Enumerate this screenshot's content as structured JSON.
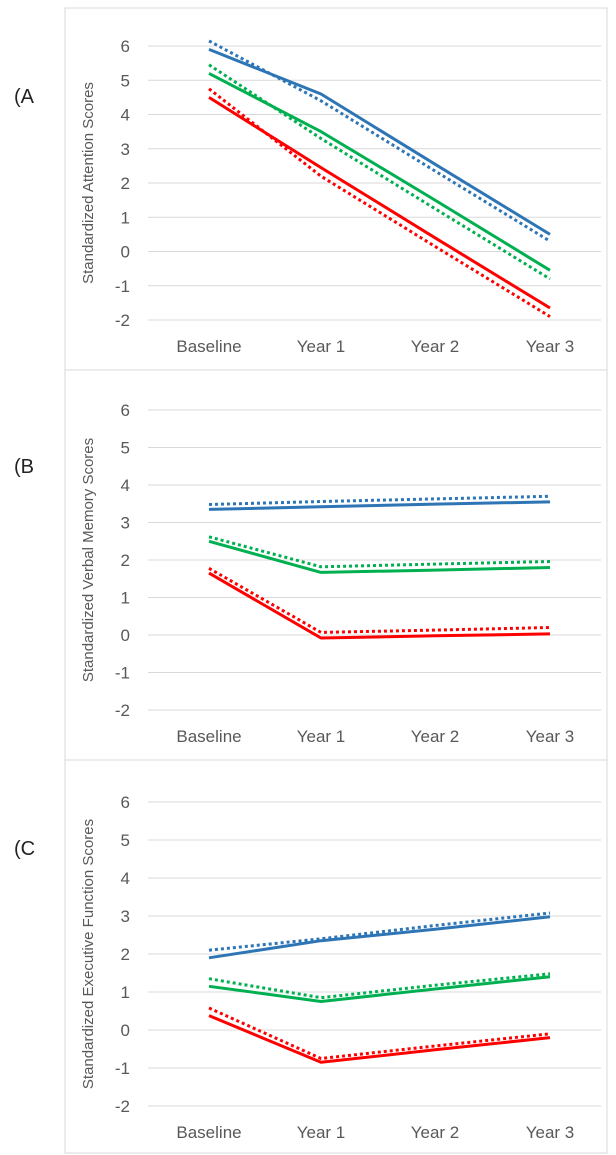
{
  "panels": [
    {
      "tag": "(A"
    },
    {
      "tag": "(B"
    },
    {
      "tag": "(C"
    }
  ],
  "colors": {
    "blue": "#2e75b6",
    "green": "#00b050",
    "red": "#ff0000",
    "grid": "#d9d9d9",
    "frame": "#d9d9d9",
    "text": "#595959"
  },
  "chart_data": [
    {
      "type": "line",
      "categories": [
        "Baseline",
        "Year 1",
        "Year 2",
        "Year 3"
      ],
      "ylabel": "Standardized Attention Scores",
      "ylim": [
        -2,
        6
      ],
      "yticks": [
        "6",
        "5",
        "4",
        "3",
        "2",
        "1",
        "0",
        "-1",
        "-2"
      ],
      "grid": true,
      "series": [
        {
          "color": "blue",
          "style": "solid",
          "values": [
            5.9,
            4.6,
            2.55,
            0.5
          ]
        },
        {
          "color": "blue",
          "style": "dotted",
          "values": [
            6.15,
            4.4,
            2.35,
            0.3
          ]
        },
        {
          "color": "green",
          "style": "solid",
          "values": [
            5.2,
            3.5,
            1.5,
            -0.55
          ]
        },
        {
          "color": "green",
          "style": "dotted",
          "values": [
            5.45,
            3.3,
            1.25,
            -0.8
          ]
        },
        {
          "color": "red",
          "style": "solid",
          "values": [
            4.5,
            2.45,
            0.4,
            -1.65
          ]
        },
        {
          "color": "red",
          "style": "dotted",
          "values": [
            4.75,
            2.2,
            0.15,
            -1.9
          ]
        }
      ]
    },
    {
      "type": "line",
      "categories": [
        "Baseline",
        "Year 1",
        "Year 2",
        "Year 3"
      ],
      "ylabel": "Standardized Verbal Memory Scores",
      "ylim": [
        -2,
        6
      ],
      "yticks": [
        "6",
        "5",
        "4",
        "3",
        "2",
        "1",
        "0",
        "-1",
        "-2"
      ],
      "grid": true,
      "series": [
        {
          "color": "blue",
          "style": "solid",
          "values": [
            3.35,
            3.42,
            3.49,
            3.55
          ]
        },
        {
          "color": "blue",
          "style": "dotted",
          "values": [
            3.48,
            3.56,
            3.63,
            3.7
          ]
        },
        {
          "color": "green",
          "style": "solid",
          "values": [
            2.5,
            1.67,
            1.73,
            1.8
          ]
        },
        {
          "color": "green",
          "style": "dotted",
          "values": [
            2.62,
            1.82,
            1.89,
            1.96
          ]
        },
        {
          "color": "red",
          "style": "solid",
          "values": [
            1.65,
            -0.08,
            -0.02,
            0.03
          ]
        },
        {
          "color": "red",
          "style": "dotted",
          "values": [
            1.78,
            0.07,
            0.13,
            0.2
          ]
        }
      ]
    },
    {
      "type": "line",
      "categories": [
        "Baseline",
        "Year 1",
        "Year 2",
        "Year 3"
      ],
      "ylabel": "Standardized Executive Function Scores",
      "ylim": [
        -2,
        6
      ],
      "yticks": [
        "6",
        "5",
        "4",
        "3",
        "2",
        "1",
        "0",
        "-1",
        "-2"
      ],
      "grid": true,
      "series": [
        {
          "color": "blue",
          "style": "solid",
          "values": [
            1.9,
            2.35,
            2.65,
            2.98
          ]
        },
        {
          "color": "blue",
          "style": "dotted",
          "values": [
            2.1,
            2.4,
            2.75,
            3.08
          ]
        },
        {
          "color": "green",
          "style": "solid",
          "values": [
            1.15,
            0.75,
            1.08,
            1.4
          ]
        },
        {
          "color": "green",
          "style": "dotted",
          "values": [
            1.35,
            0.85,
            1.18,
            1.48
          ]
        },
        {
          "color": "red",
          "style": "solid",
          "values": [
            0.38,
            -0.85,
            -0.52,
            -0.2
          ]
        },
        {
          "color": "red",
          "style": "dotted",
          "values": [
            0.58,
            -0.75,
            -0.42,
            -0.1
          ]
        }
      ]
    }
  ]
}
